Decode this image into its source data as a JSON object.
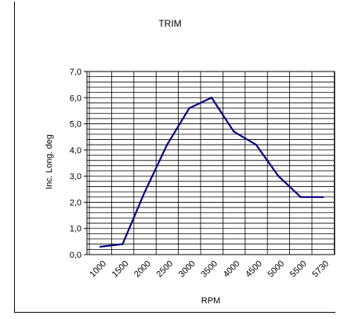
{
  "chart_data": {
    "type": "line",
    "title": "TRIM",
    "xlabel": "RPM",
    "ylabel": "Inc. Long. deg",
    "categories": [
      "1000",
      "1500",
      "2000",
      "2500",
      "3000",
      "3500",
      "4000",
      "4500",
      "5000",
      "5500",
      "5730"
    ],
    "series": [
      {
        "values": [
          0.3,
          0.4,
          2.4,
          4.2,
          5.6,
          6.0,
          4.7,
          4.2,
          3.0,
          2.2,
          2.2
        ],
        "color": "#000080"
      }
    ],
    "ylim": [
      0,
      7
    ],
    "yticks": [
      "0,0",
      "1,0",
      "2,0",
      "3,0",
      "4,0",
      "5,0",
      "6,0",
      "7,0"
    ],
    "grid": true,
    "legend": "none"
  }
}
